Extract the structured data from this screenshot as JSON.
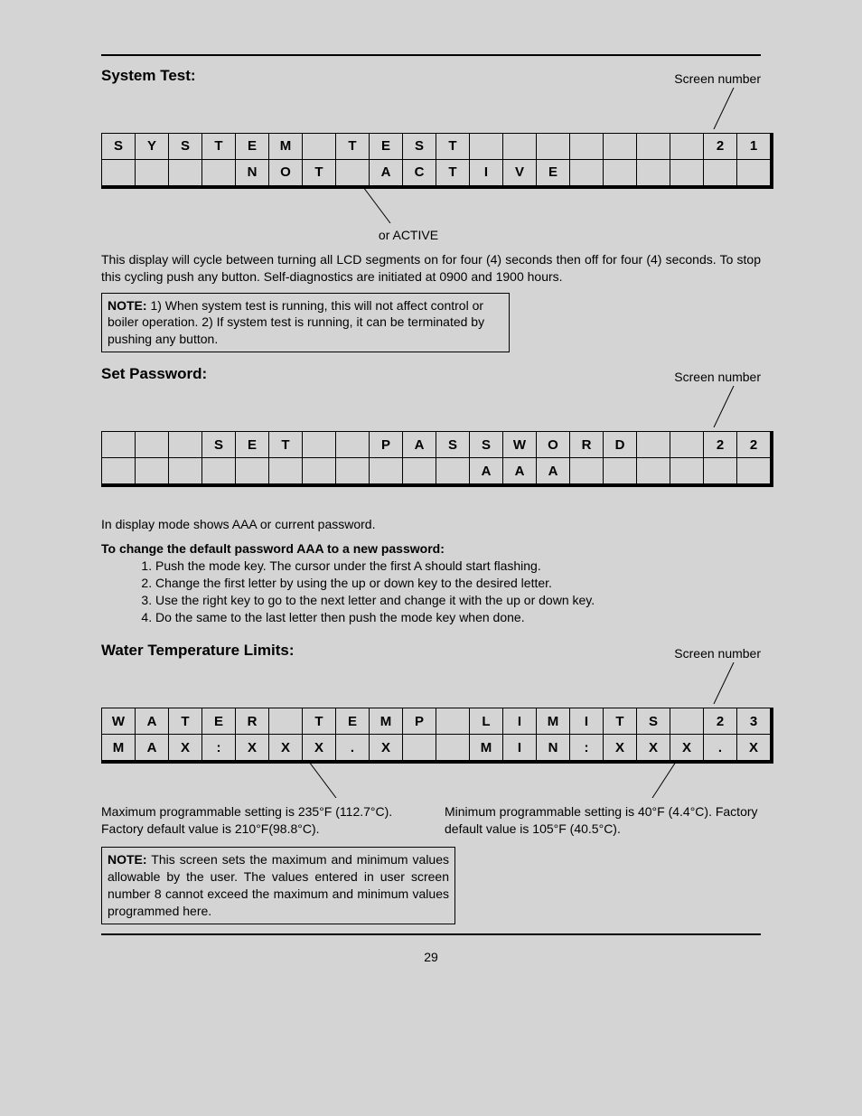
{
  "page_number": "29",
  "sections": {
    "system_test": {
      "title": "System Test:",
      "screen_label": "Screen number",
      "grid": [
        [
          "S",
          "Y",
          "S",
          "T",
          "E",
          "M",
          "",
          "T",
          "E",
          "S",
          "T",
          "",
          "",
          "",
          "",
          "",
          "",
          "",
          "2",
          "1"
        ],
        [
          "",
          "",
          "",
          "",
          "N",
          "O",
          "T",
          "",
          "A",
          "C",
          "T",
          "I",
          "V",
          "E",
          "",
          "",
          "",
          "",
          "",
          ""
        ]
      ],
      "center_annotation": "or ACTIVE",
      "description": "This display will cycle between turning all LCD segments on for four (4) seconds then off for four (4) seconds. To stop this cycling push any button. Self-diagnostics are initiated at 0900 and 1900 hours.",
      "note": "1) When system test is running, this will not affect control or boiler operation. 2) If system test is running, it can be terminated by pushing any button."
    },
    "set_password": {
      "title": "Set Password:",
      "screen_label": "Screen number",
      "grid": [
        [
          "",
          "",
          "",
          "S",
          "E",
          "T",
          "",
          "",
          "P",
          "A",
          "S",
          "S",
          "W",
          "O",
          "R",
          "D",
          "",
          "",
          "2",
          "2"
        ],
        [
          "",
          "",
          "",
          "",
          "",
          "",
          "",
          "",
          "",
          "",
          "",
          "A",
          "A",
          "A",
          "",
          "",
          "",
          "",
          "",
          ""
        ]
      ],
      "description": "In display mode shows AAA or current password.",
      "subtitle": "To change the default password AAA to a new password:",
      "steps": [
        "Push the mode key. The cursor under the first A should start flashing.",
        "Change the first letter by using the up or down key to the desired letter.",
        "Use the right key to go to the next letter and change it with the up or down key.",
        "Do the same to the last letter then push the mode key when done."
      ]
    },
    "water_temp": {
      "title": "Water Temperature Limits:",
      "screen_label": "Screen number",
      "grid": [
        [
          "W",
          "A",
          "T",
          "E",
          "R",
          "",
          "T",
          "E",
          "M",
          "P",
          "",
          "L",
          "I",
          "M",
          "I",
          "T",
          "S",
          "",
          "2",
          "3"
        ],
        [
          "M",
          "A",
          "X",
          ":",
          "X",
          "X",
          "X",
          ".",
          "X",
          "",
          "",
          "M",
          "I",
          "N",
          ":",
          "X",
          "X",
          "X",
          ".",
          "X"
        ]
      ],
      "left_text": "Maximum programmable setting is 235°F (112.7°C). Factory default value is 210°F(98.8°C).",
      "right_text": "Minimum programmable setting is 40°F (4.4°C). Factory default  value is 105°F (40.5°C).",
      "note": "This screen sets the maximum and minimum values allowable by the user. The values entered in user screen number 8 cannot exceed the maximum and minimum values programmed here."
    }
  }
}
